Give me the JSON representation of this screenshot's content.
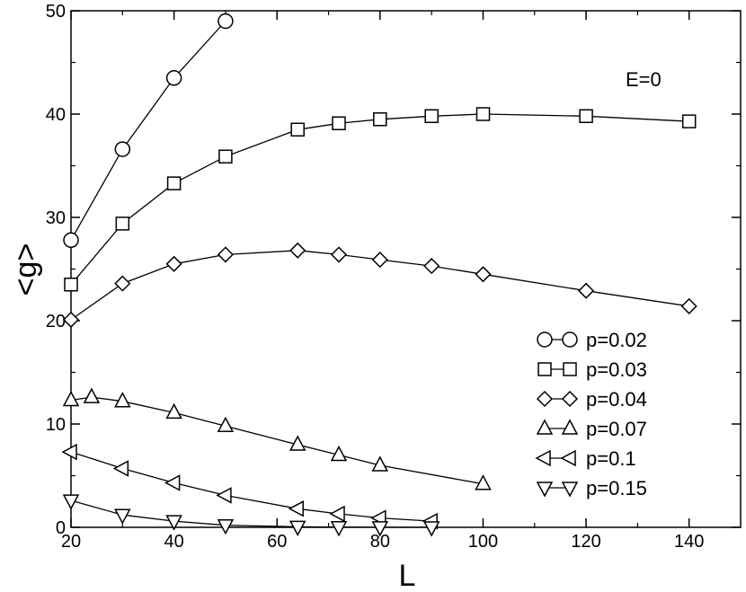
{
  "chart_data": {
    "type": "line",
    "xlabel": "L",
    "ylabel": "<g>",
    "xlim": [
      20,
      150
    ],
    "ylim": [
      0,
      50
    ],
    "xticks": [
      20,
      40,
      60,
      80,
      100,
      120,
      140
    ],
    "yticks": [
      0,
      10,
      20,
      30,
      40,
      50
    ],
    "grid": false,
    "legend_position": "lower-right",
    "annotation": "E=0",
    "series": [
      {
        "name": "p=0.02",
        "marker": "circle",
        "x": [
          20,
          30,
          40,
          50
        ],
        "y": [
          27.8,
          36.6,
          43.5,
          49.0
        ]
      },
      {
        "name": "p=0.03",
        "marker": "square",
        "x": [
          20,
          30,
          40,
          50,
          64,
          72,
          80,
          90,
          100,
          120,
          140
        ],
        "y": [
          23.5,
          29.4,
          33.3,
          35.9,
          38.5,
          39.1,
          39.5,
          39.8,
          40.0,
          39.8,
          39.3
        ]
      },
      {
        "name": "p=0.04",
        "marker": "diamond",
        "x": [
          20,
          30,
          40,
          50,
          64,
          72,
          80,
          90,
          100,
          120,
          140
        ],
        "y": [
          20.1,
          23.6,
          25.5,
          26.4,
          26.8,
          26.4,
          25.9,
          25.3,
          24.5,
          22.9,
          21.4
        ]
      },
      {
        "name": "p=0.07",
        "marker": "triangle-up",
        "x": [
          20,
          24,
          30,
          40,
          50,
          64,
          72,
          80,
          100
        ],
        "y": [
          12.3,
          12.6,
          12.2,
          11.1,
          9.8,
          8.0,
          7.0,
          6.0,
          4.2
        ]
      },
      {
        "name": "p=0.1",
        "marker": "triangle-left",
        "x": [
          20,
          30,
          40,
          50,
          64,
          72,
          80,
          90
        ],
        "y": [
          7.3,
          5.7,
          4.3,
          3.1,
          1.8,
          1.3,
          0.9,
          0.6
        ]
      },
      {
        "name": "p=0.15",
        "marker": "triangle-down",
        "x": [
          20,
          30,
          40,
          50,
          64,
          72,
          80,
          90
        ],
        "y": [
          2.6,
          1.2,
          0.6,
          0.2,
          0.05,
          0.02,
          0.01,
          0.0
        ]
      }
    ]
  },
  "colors": {
    "line": "#000000",
    "background": "#ffffff"
  }
}
